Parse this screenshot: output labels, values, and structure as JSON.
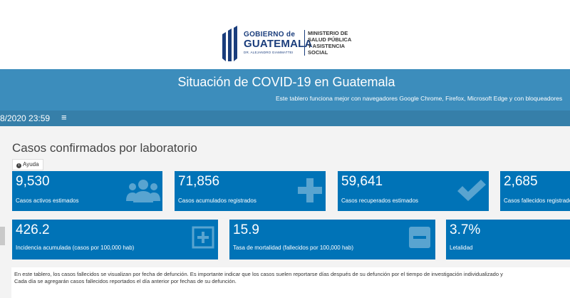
{
  "logo": {
    "gob_line1": "GOBIERNO de",
    "gob_line2": "GUATEMALA",
    "gob_line3": "DR. ALEJANDRO GIAMMATTEI",
    "ministry": [
      "MINISTERIO DE",
      "SALUD PÚBLICA",
      "Y ASISTENCIA",
      "SOCIAL"
    ]
  },
  "banner": {
    "title": "Situación de COVID-19 en Guatemala",
    "subtitle": "Este tablero funciona mejor con navegadores Google Chrome, Firefox, Microsoft Edge y con bloqueadores"
  },
  "navbar": {
    "datetime": "8/2020 23:59",
    "menu_icon": "hamburger-icon",
    "menu_glyph": "≡"
  },
  "section": {
    "title": "Casos confirmados por laboratorio",
    "help_label": "Ayuda",
    "help_glyph": "i"
  },
  "row1": [
    {
      "value": "9,530",
      "label": "Casos activos estimados",
      "icon": "users-icon"
    },
    {
      "value": "71,856",
      "label": "Casos acumulados registrados",
      "icon": "plus-icon"
    },
    {
      "value": "59,641",
      "label": "Casos recuperados estimados",
      "icon": "check-icon"
    },
    {
      "value": "2,685",
      "label": "Casos fallecidos registrados",
      "icon": ""
    }
  ],
  "row2": [
    {
      "value": "426.2",
      "label": "Incidencia acumulada (casos por 100,000 hab)",
      "icon": "plus-square-icon"
    },
    {
      "value": "15.9",
      "label": "Tasa de mortalidad (fallecidos por 100,000 hab)",
      "icon": "minus-square-icon"
    },
    {
      "value": "3.7%",
      "label": "Letalidad",
      "icon": ""
    }
  ],
  "note": {
    "line1": "En este tablero, los casos fallecidos se visualizan por fecha de defunción. Es importante indicar que los casos suelen reportarse días después de su defunción por el tiempo de investigación individualizado y",
    "line2": "Cada día se agregarán casos fallecidos reportados el día anterior por fechas de su defunción."
  },
  "colors": {
    "banner": "#3c8dbc",
    "navbar": "#367fa9",
    "box": "#0073b7",
    "brand_blue": "#1a3d7c"
  }
}
